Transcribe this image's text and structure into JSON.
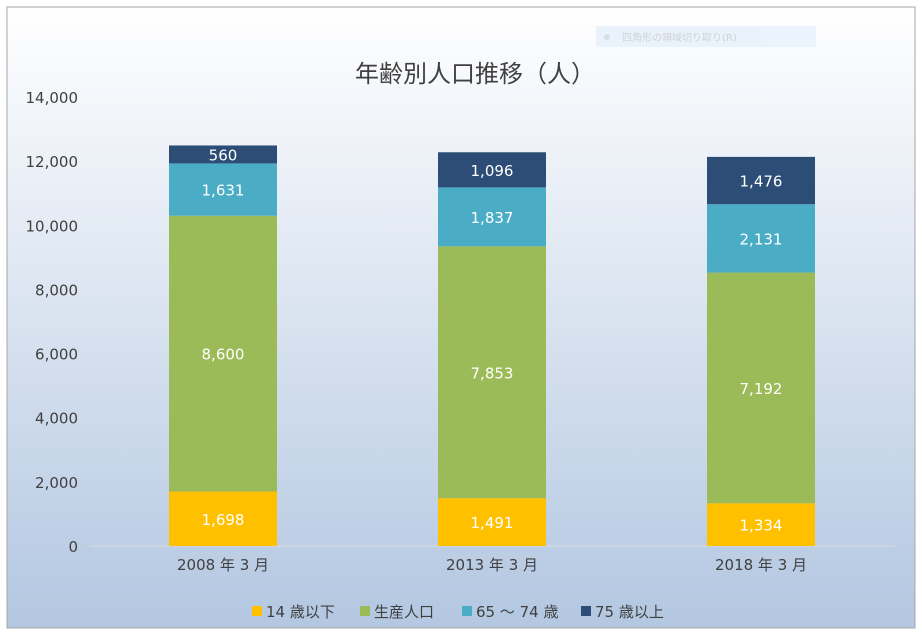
{
  "overlay": {
    "label": "四角形の領域切り取り(R)"
  },
  "chart_data": {
    "type": "bar",
    "stacked": true,
    "title": "年齢別人口推移（人）",
    "xlabel": "",
    "ylabel": "",
    "ylim": [
      0,
      14000
    ],
    "yticks": [
      0,
      2000,
      4000,
      6000,
      8000,
      10000,
      12000,
      14000
    ],
    "ytick_labels": [
      "0",
      "2,000",
      "4,000",
      "6,000",
      "8,000",
      "10,000",
      "12,000",
      "14,000"
    ],
    "categories": [
      "2008 年 3 月",
      "2013 年 3 月",
      "2018 年 3 月"
    ],
    "series": [
      {
        "name": "14 歳以下",
        "color": "#ffc000",
        "values": [
          1698,
          1491,
          1334
        ],
        "labels": [
          "1,698",
          "1,491",
          "1,334"
        ]
      },
      {
        "name": "生産人口",
        "color": "#9bbb59",
        "values": [
          8600,
          7853,
          7192
        ],
        "labels": [
          "8,600",
          "7,853",
          "7,192"
        ]
      },
      {
        "name": "65 ～ 74 歳",
        "color": "#4bacc6",
        "values": [
          1631,
          1837,
          2131
        ],
        "labels": [
          "1,631",
          "1,837",
          "2,131"
        ]
      },
      {
        "name": "75 歳以上",
        "color": "#2c4d75",
        "values": [
          560,
          1096,
          1476
        ],
        "labels": [
          "560",
          "1,096",
          "1,476"
        ]
      }
    ],
    "grid": false,
    "legend": "bottom"
  }
}
